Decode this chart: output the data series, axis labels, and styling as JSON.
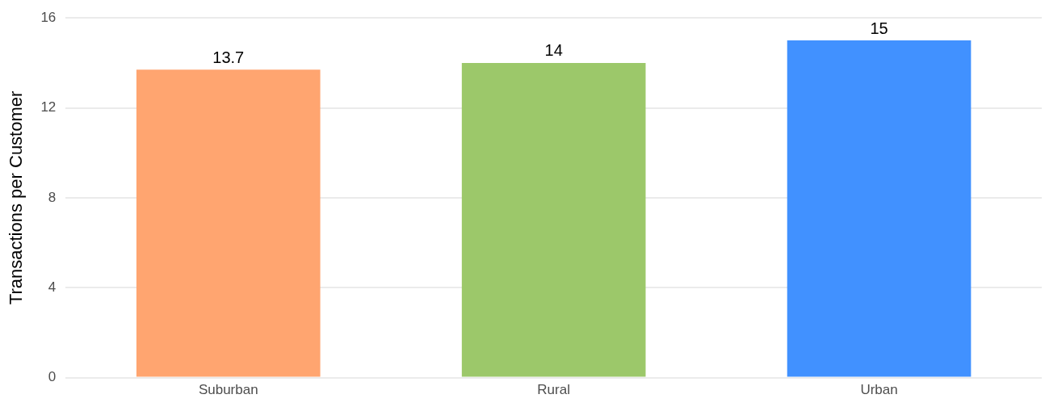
{
  "chart_data": {
    "type": "bar",
    "ylabel": "Transactions per Customer",
    "categories": [
      "Suburban",
      "Rural",
      "Urban"
    ],
    "values": [
      13.7,
      14,
      15
    ],
    "colors": [
      "#ffa570",
      "#9cc86a",
      "#4191ff"
    ],
    "ylim": [
      0,
      16
    ],
    "yticks": [
      0,
      4,
      8,
      12,
      16
    ],
    "grid": "y",
    "data_labels": true
  }
}
